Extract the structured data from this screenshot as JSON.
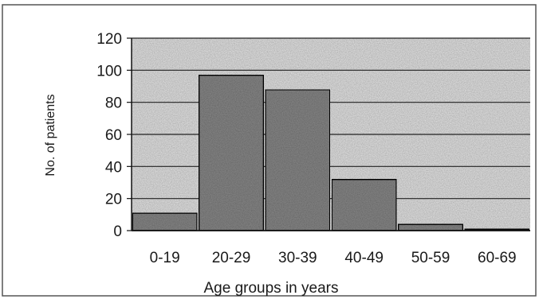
{
  "chart_data": {
    "type": "bar",
    "categories": [
      "0-19",
      "20-29",
      "30-39",
      "40-49",
      "50-59",
      "60-69"
    ],
    "values": [
      11,
      97,
      88,
      32,
      4,
      1
    ],
    "title": "",
    "xlabel": "Age groups in years",
    "ylabel": "No. of patients",
    "ylim": [
      0,
      120
    ],
    "yticks": [
      "0",
      "20",
      "40",
      "60",
      "80",
      "100",
      "120"
    ],
    "grid": true,
    "legend": "none",
    "colors": {
      "bar_fill": "#8a8a8a",
      "bar_stroke": "#111111",
      "plot_background": "#e6e6e6",
      "gridline": "#222222"
    }
  }
}
